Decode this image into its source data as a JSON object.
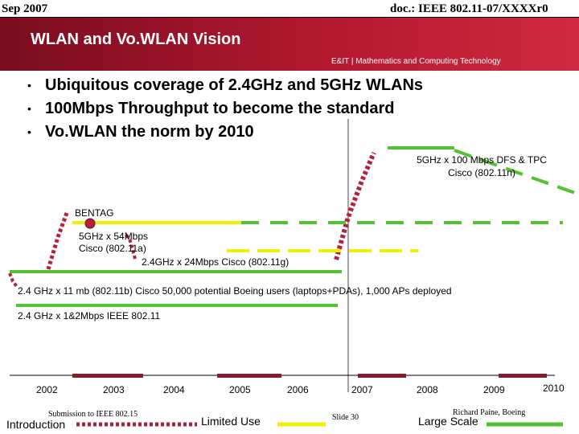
{
  "header": {
    "date": "Sep 2007",
    "doc": "doc.: IEEE 802.11-07/XXXXr0"
  },
  "banner": {
    "title": "WLAN and Vo.WLAN Vision",
    "subtitle": "E&IT | Mathematics and Computing Technology"
  },
  "bullets": [
    "Ubiquitous coverage of 2.4GHz and 5GHz WLANs",
    "100Mbps Throughput to become the standard",
    "Vo.WLAN the norm by 2010"
  ],
  "bullet_glyph": "•",
  "timeline": {
    "labels": {
      "n_line1": "5GHz x 100 Mbps DFS & TPC",
      "n_line2": "Cisco (802.11n)",
      "bentag": "BENTAG",
      "a_line1": "5GHz x 54Mbps",
      "a_line2": "Cisco (802.11a)",
      "g": "2.4GHz x 24Mbps Cisco (802.11g)",
      "b": "2.4 GHz x 11 mb  (802.11b) Cisco 50,000 potential Boeing users (laptops+PDAs), 1,000 APs deployed",
      "legacy": "2.4 GHz x 1&2Mbps  IEEE 802.11"
    },
    "years": [
      "2002",
      "2003",
      "2004",
      "2005",
      "2006",
      "2007",
      "2008",
      "2009",
      "2010"
    ]
  },
  "legend": {
    "introduction": "Introduction",
    "limited_use": "Limited Use",
    "large_scale": "Large Scale"
  },
  "footer": {
    "submission": "Submission to IEEE 802.15",
    "slide": "Slide 30",
    "author": "Richard Paine, Boeing"
  },
  "colors": {
    "banner": "#b3182f",
    "introduction": "#b5203a",
    "limited_use": "#f0f000",
    "large_scale": "#52c233",
    "year_bar": "#8b1a2d"
  }
}
